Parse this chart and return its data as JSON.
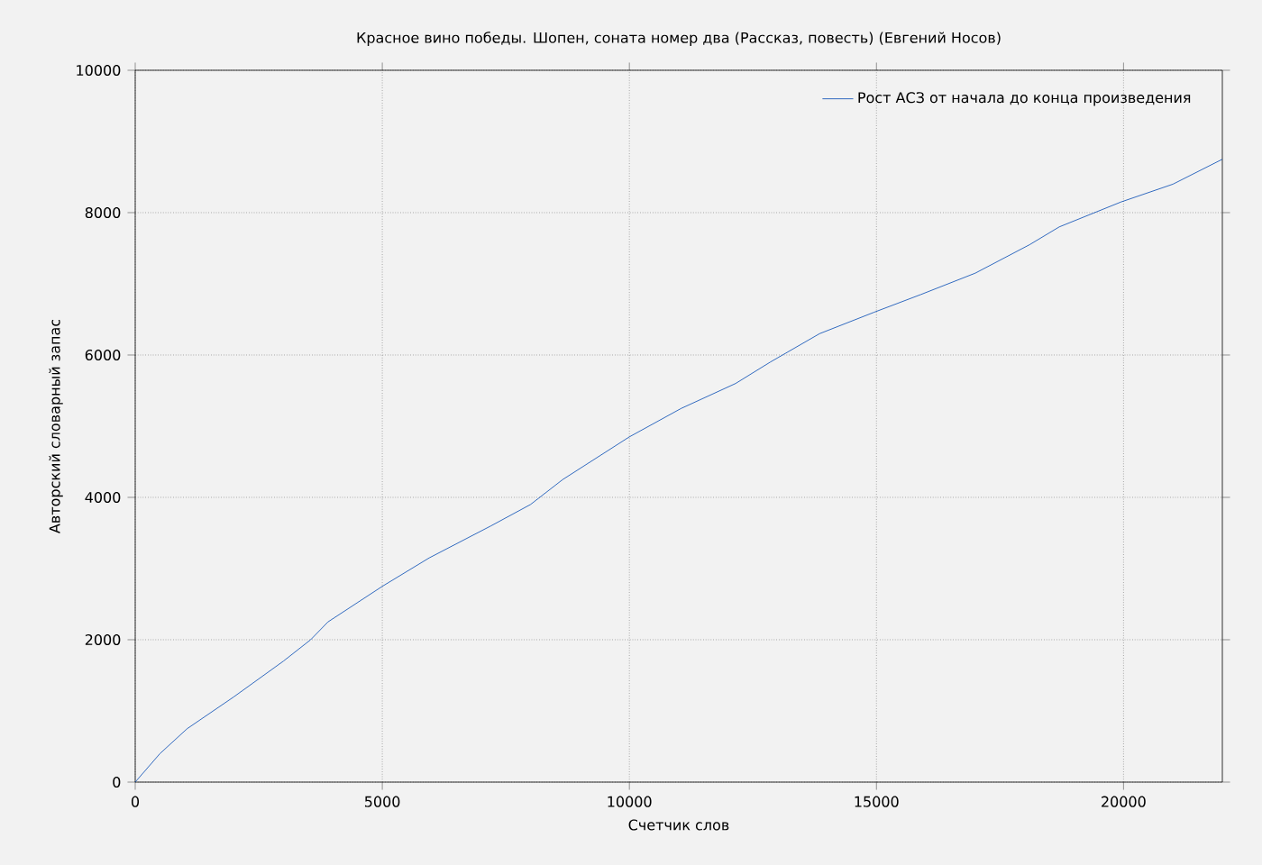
{
  "chart_data": {
    "type": "line",
    "title": "Красное вино победы. Шопен, соната номер два (Рассказ, повесть) (Евгений Носов)",
    "xlabel": "Счетчик слов",
    "ylabel": "Авторский словарный запас",
    "series": [
      {
        "name": "Рост АСЗ от начала до конца произведения",
        "color": "#0047b3",
        "x": [
          0,
          500,
          1050,
          2000,
          3000,
          3550,
          3900,
          5000,
          5950,
          7200,
          8000,
          8650,
          10000,
          11050,
          12150,
          12850,
          13850,
          14950,
          15900,
          17000,
          18100,
          18700,
          19950,
          21000,
          22000
        ],
        "values": [
          0,
          400,
          750,
          1200,
          1700,
          2000,
          2250,
          2750,
          3150,
          3600,
          3900,
          4250,
          4850,
          5250,
          5600,
          5900,
          6300,
          6600,
          6850,
          7150,
          7550,
          7800,
          8150,
          8400,
          8750
        ]
      }
    ],
    "xlim": [
      0,
      22000
    ],
    "ylim": [
      0,
      10000
    ],
    "xticks": [
      0,
      5000,
      10000,
      15000,
      20000
    ],
    "yticks": [
      0,
      2000,
      4000,
      6000,
      8000,
      10000
    ],
    "grid": true,
    "legend": "top right",
    "marker": "none",
    "line_style": "solid"
  }
}
